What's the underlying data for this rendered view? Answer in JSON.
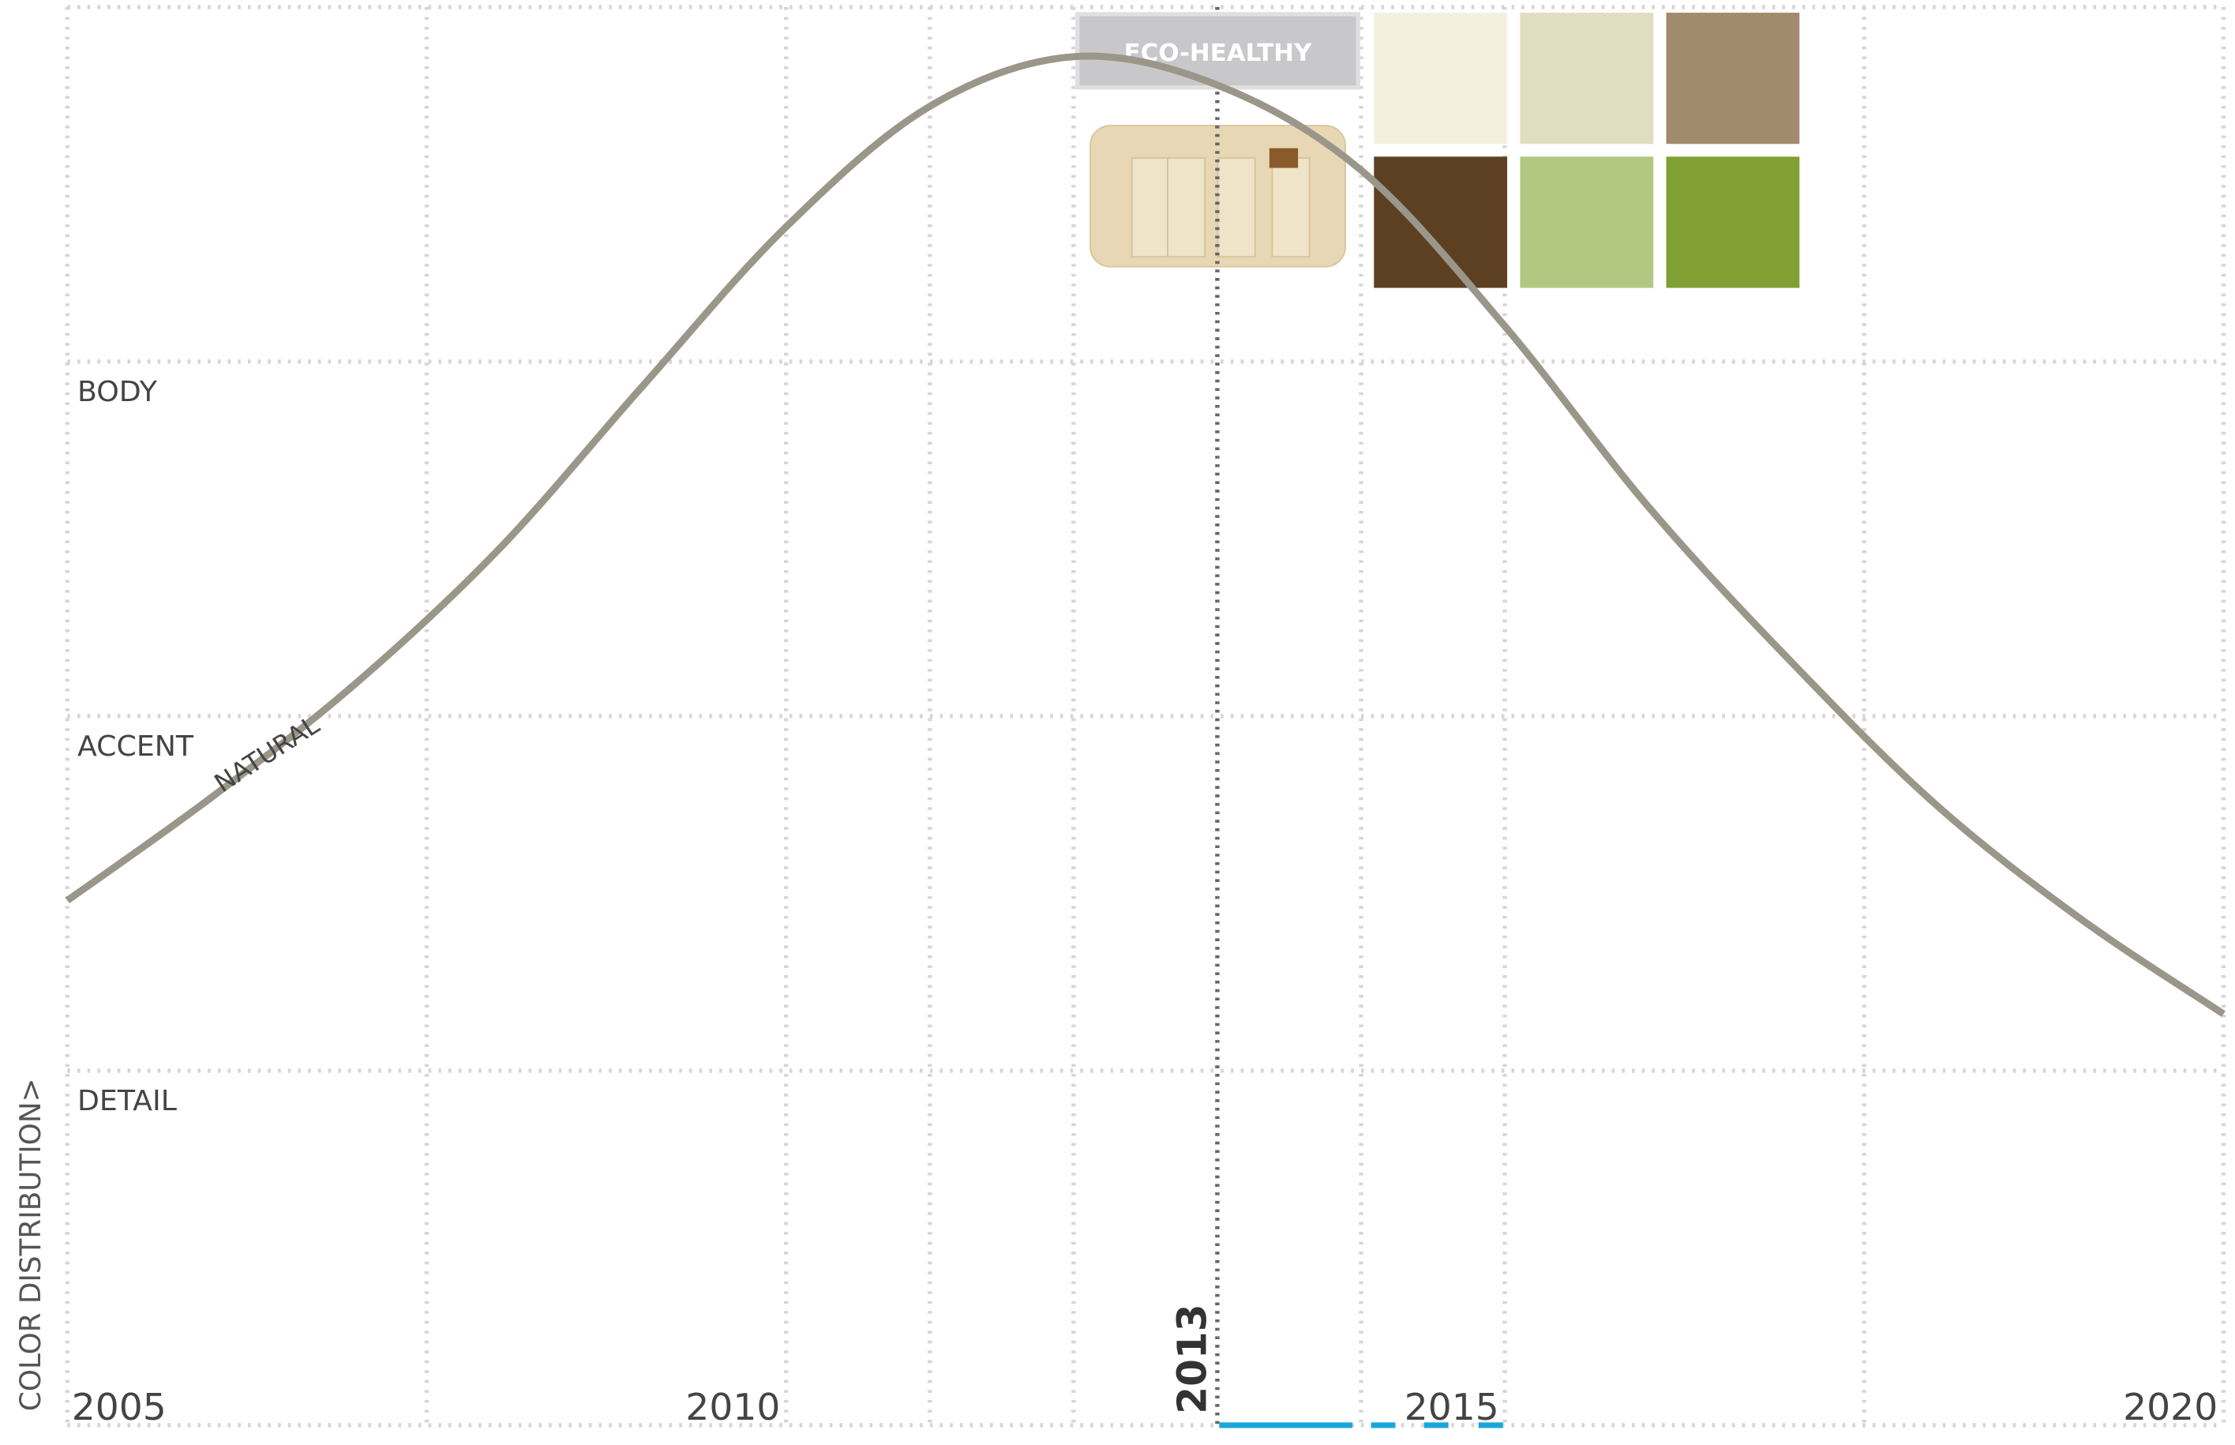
{
  "chart_data": {
    "type": "line",
    "ylabel": "COLOR DISTRIBUTION>",
    "xlim": [
      2005,
      2020
    ],
    "xticks": [
      2005,
      2010,
      2015,
      2020
    ],
    "xgrid": [
      2005,
      2007.5,
      2010,
      2011,
      2012,
      2014,
      2015,
      2017.5,
      2020
    ],
    "ylim": [
      0,
      4
    ],
    "yticks": [
      {
        "value": 1,
        "label": "DETAIL"
      },
      {
        "value": 2,
        "label": "ACCENT"
      },
      {
        "value": 3,
        "label": "BODY"
      }
    ],
    "grid": true,
    "marker": {
      "value": 2013,
      "label": "2013"
    },
    "annotation": "ECO-HEALTHY",
    "swatches": [
      "#f3f1de",
      "#e1ddc1",
      "#a08b6d",
      "#5d3f22",
      "#b2c881",
      "#80a033"
    ],
    "x": [
      2005,
      2006,
      2007,
      2008,
      2009,
      2010,
      2011,
      2012,
      2013,
      2014,
      2015,
      2016,
      2017,
      2018,
      2019,
      2020
    ],
    "series": [
      {
        "name": "NATURAL",
        "color": "#9a968a",
        "values": [
          1.48,
          1.77,
          2.09,
          2.47,
          2.93,
          3.38,
          3.72,
          3.86,
          3.78,
          3.54,
          3.1,
          2.59,
          2.15,
          1.75,
          1.43,
          1.16
        ]
      }
    ]
  }
}
